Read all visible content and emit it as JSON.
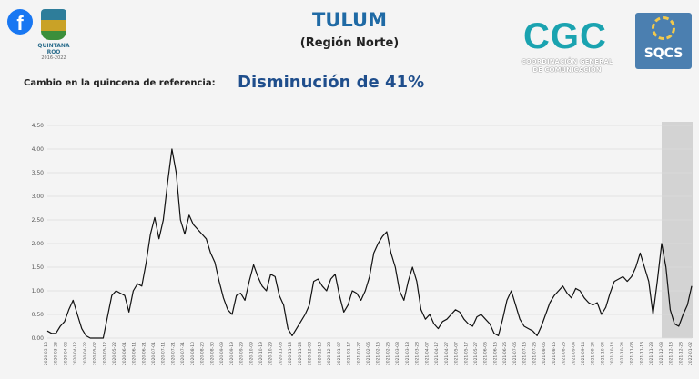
{
  "header": {
    "facebook_icon": "f",
    "state_logo": "QUINTANA ROO",
    "state_logo_years": "2016-2022",
    "title": "TULUM",
    "subtitle": "(Región Norte)",
    "cgc_logo": "CGC",
    "cgc_line1": "COORDINACIÓN GENERAL",
    "cgc_line2": "DE COMUNICACIÓN",
    "sqcs_logo": "SQCS",
    "change_label": "Cambio en la quincena de referencia:",
    "change_value": "Disminución de 41%"
  },
  "colors": {
    "title": "#1f6aa5",
    "accent": "#1f4e8c",
    "cgc": "#1aa3b0",
    "line": "#111111",
    "highlight": "#cccccc"
  },
  "chart_data": {
    "type": "line",
    "title": "TULUM",
    "subtitle": "(Región Norte)",
    "xlabel": "",
    "ylabel": "",
    "ylim": [
      0,
      4.5
    ],
    "yticks": [
      "0.00",
      "0.50",
      "1.00",
      "1.50",
      "2.00",
      "2.50",
      "3.00",
      "3.50",
      "4.00",
      "4.50"
    ],
    "grid": true,
    "highlight_last_period": true,
    "x_labels": [
      "2020-03-13",
      "2020-03-23",
      "2020-04-02",
      "2020-04-12",
      "2020-04-22",
      "2020-05-02",
      "2020-05-12",
      "2020-05-22",
      "2020-06-01",
      "2020-06-11",
      "2020-06-21",
      "2020-07-01",
      "2020-07-11",
      "2020-07-21",
      "2020-07-31",
      "2020-08-10",
      "2020-08-20",
      "2020-08-30",
      "2020-09-09",
      "2020-09-19",
      "2020-09-29",
      "2020-10-09",
      "2020-10-19",
      "2020-10-29",
      "2020-11-08",
      "2020-11-18",
      "2020-11-28",
      "2020-12-08",
      "2020-12-18",
      "2020-12-28",
      "2021-01-07",
      "2021-01-17",
      "2021-01-27",
      "2021-02-06",
      "2021-02-16",
      "2021-02-26",
      "2021-03-08",
      "2021-03-18",
      "2021-03-28",
      "2021-04-07",
      "2021-04-17",
      "2021-04-27",
      "2021-05-07",
      "2021-05-17",
      "2021-05-27",
      "2021-06-06",
      "2021-06-16",
      "2021-06-26",
      "2021-07-06",
      "2021-07-16",
      "2021-07-26",
      "2021-08-05",
      "2021-08-15",
      "2021-08-25",
      "2021-09-04",
      "2021-09-14",
      "2021-09-24",
      "2021-10-04",
      "2021-10-14",
      "2021-10-24",
      "2021-11-03",
      "2021-11-13",
      "2021-11-23",
      "2021-12-03",
      "2021-12-13",
      "2021-12-23",
      "2022-01-02"
    ],
    "values": [
      0.15,
      0.1,
      0.1,
      0.25,
      0.35,
      0.6,
      0.8,
      0.5,
      0.2,
      0.05,
      0.0,
      0.0,
      0.0,
      0.0,
      0.45,
      0.9,
      1.0,
      0.95,
      0.9,
      0.55,
      1.0,
      1.15,
      1.1,
      1.6,
      2.2,
      2.55,
      2.1,
      2.5,
      3.3,
      4.0,
      3.5,
      2.5,
      2.2,
      2.6,
      2.4,
      2.3,
      2.2,
      2.1,
      1.8,
      1.6,
      1.2,
      0.85,
      0.6,
      0.5,
      0.9,
      0.95,
      0.8,
      1.2,
      1.55,
      1.3,
      1.1,
      1.0,
      1.35,
      1.3,
      0.9,
      0.7,
      0.2,
      0.05,
      0.2,
      0.35,
      0.5,
      0.7,
      1.2,
      1.25,
      1.1,
      1.0,
      1.25,
      1.35,
      0.9,
      0.55,
      0.7,
      1.0,
      0.95,
      0.8,
      1.0,
      1.3,
      1.8,
      2.0,
      2.15,
      2.25,
      1.8,
      1.5,
      1.0,
      0.8,
      1.2,
      1.5,
      1.2,
      0.6,
      0.4,
      0.5,
      0.3,
      0.2,
      0.35,
      0.4,
      0.5,
      0.6,
      0.55,
      0.4,
      0.3,
      0.25,
      0.45,
      0.5,
      0.4,
      0.3,
      0.1,
      0.05,
      0.4,
      0.8,
      1.0,
      0.7,
      0.4,
      0.25,
      0.2,
      0.15,
      0.05,
      0.25,
      0.5,
      0.75,
      0.9,
      1.0,
      1.1,
      0.95,
      0.85,
      1.05,
      1.0,
      0.85,
      0.75,
      0.7,
      0.75,
      0.5,
      0.65,
      0.95,
      1.2,
      1.25,
      1.3,
      1.2,
      1.3,
      1.5,
      1.8,
      1.5,
      1.2,
      0.5,
      1.2,
      2.0,
      1.5,
      0.6,
      0.3,
      0.25,
      0.5,
      0.7,
      1.1
    ]
  }
}
